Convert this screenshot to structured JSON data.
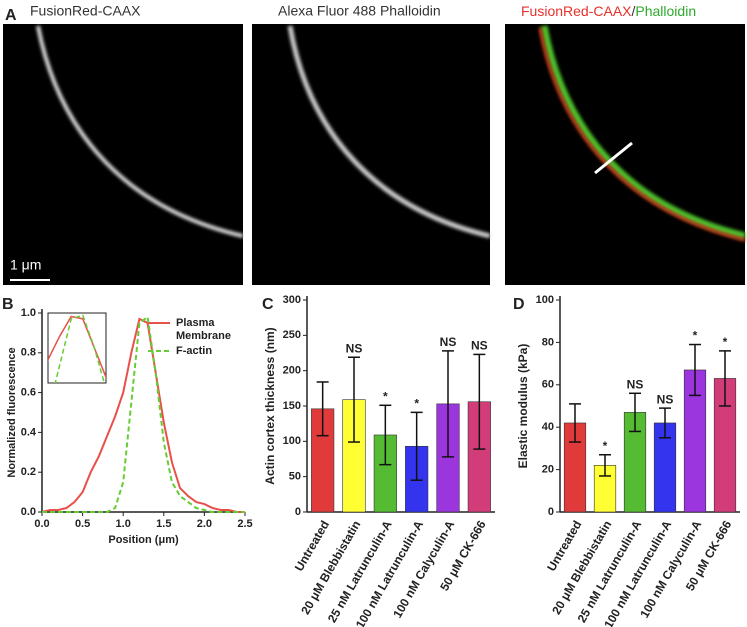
{
  "panels": [
    {
      "label": "A",
      "images": [
        {
          "title": "FusionRed-CAAX",
          "scale_bar": "1 μm"
        },
        {
          "title": "Alexa Fluor 488 Phalloidin"
        },
        {
          "title_parts": [
            {
              "text": "FusionRed-CAAX",
              "color": "#e8302a"
            },
            {
              "text": "/",
              "color": "#333333"
            },
            {
              "text": "Phalloidin",
              "color": "#2eaa2e"
            }
          ]
        }
      ]
    }
  ],
  "chart_data": [
    {
      "type": "line",
      "panel_label": "B",
      "xlabel": "Position (μm)",
      "ylabel": "Normalized fluorescence",
      "x": [
        0,
        0.1,
        0.2,
        0.3,
        0.4,
        0.5,
        0.6,
        0.7,
        0.8,
        0.9,
        1.0,
        1.1,
        1.2,
        1.3,
        1.4,
        1.5,
        1.6,
        1.7,
        1.8,
        1.9,
        2.0,
        2.1,
        2.2,
        2.3,
        2.4,
        2.5
      ],
      "series": [
        {
          "name": "Plasma Membrane",
          "color": "#e8504a",
          "dash": false,
          "values": [
            0,
            0.01,
            0.01,
            0.02,
            0.05,
            0.1,
            0.2,
            0.28,
            0.38,
            0.48,
            0.6,
            0.8,
            0.97,
            0.95,
            0.7,
            0.45,
            0.25,
            0.12,
            0.08,
            0.05,
            0.04,
            0.02,
            0.01,
            0.01,
            0,
            0
          ]
        },
        {
          "name": "F-actin",
          "color": "#66cc33",
          "dash": true,
          "values": [
            0,
            0,
            0,
            0,
            0,
            0,
            0,
            0,
            0,
            0.02,
            0.15,
            0.55,
            0.95,
            0.98,
            0.7,
            0.35,
            0.15,
            0.08,
            0.05,
            0.02,
            0.01,
            0,
            0,
            0,
            0,
            0
          ]
        }
      ],
      "xlim": [
        0,
        2.5
      ],
      "xticks": [
        {
          "value": 0,
          "label": "0.0"
        },
        0.5,
        {
          "value": 1,
          "label": "1.0"
        },
        1.5,
        {
          "value": 2,
          "label": "2.0"
        },
        2.5
      ],
      "ylim": [
        0,
        1
      ],
      "yticks": [
        {
          "value": 0,
          "label": "0.0"
        },
        0.2,
        0.4,
        0.6,
        0.8,
        {
          "value": 1,
          "label": "1.0"
        }
      ]
    },
    {
      "type": "bar",
      "panel_label": "C",
      "ylabel": "Actin cortex thickness (nm)",
      "categories": [
        "Untreated",
        "20 μM Blebbistatin",
        "25 nM Latrunculin-A",
        "100 nM Latrunculin-A",
        "100 nM Calyculin-A",
        "50 μM CK-666"
      ],
      "values": [
        146,
        159,
        109,
        93,
        153,
        156
      ],
      "errors": [
        38,
        60,
        42,
        48,
        75,
        67
      ],
      "annotations": [
        null,
        "NS",
        "*",
        "*",
        "NS",
        "NS"
      ],
      "colors": [
        "#e03a3a",
        "#ffff33",
        "#55bb33",
        "#3434ee",
        "#9b35dd",
        "#d23c78"
      ],
      "ylim": [
        0,
        300
      ],
      "yticks": [
        0,
        50,
        100,
        150,
        200,
        250,
        300
      ]
    },
    {
      "type": "bar",
      "panel_label": "D",
      "ylabel": "Elastic modulus (kPa)",
      "categories": [
        "Untreated",
        "20 μM Blebbistatin",
        "25 nM Latrunculin-A",
        "100 nM Latrunculin-A",
        "100 nM Calyculin-A",
        "50 μM CK-666"
      ],
      "values": [
        42,
        22,
        47,
        42,
        67,
        63
      ],
      "errors": [
        9,
        5,
        9,
        7,
        12,
        13
      ],
      "annotations": [
        null,
        "*",
        "NS",
        "NS",
        "*",
        "*"
      ],
      "colors": [
        "#e03a3a",
        "#ffff33",
        "#55bb33",
        "#3434ee",
        "#9b35dd",
        "#d23c78"
      ],
      "ylim": [
        0,
        100
      ],
      "yticks": [
        0,
        20,
        40,
        60,
        80,
        100
      ]
    }
  ]
}
